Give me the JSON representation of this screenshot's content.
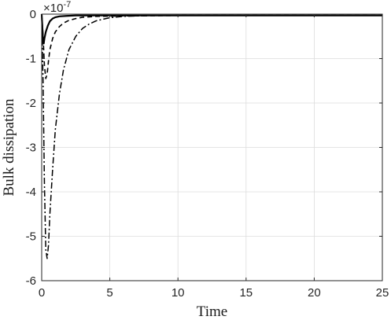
{
  "chart_data": {
    "type": "line",
    "title": "",
    "xlabel": "Time",
    "ylabel": "Bulk dissipation",
    "xlim": [
      0,
      25
    ],
    "ylim": [
      -6,
      0
    ],
    "y_exponent_label": "×10",
    "y_exponent": "-7",
    "xticks": [
      0,
      5,
      10,
      15,
      20,
      25
    ],
    "yticks": [
      0,
      -1,
      -2,
      -3,
      -4,
      -5,
      -6
    ],
    "grid": true,
    "legend": "none",
    "series": [
      {
        "style": "solid",
        "x": [
          0,
          0.05,
          0.1,
          0.15,
          0.2,
          0.3,
          0.45,
          0.6,
          0.8,
          1.0,
          1.3,
          1.8,
          2.5,
          5,
          10,
          25
        ],
        "y": [
          0,
          -0.3,
          -0.6,
          -0.66,
          -0.55,
          -0.4,
          -0.26,
          -0.16,
          -0.1,
          -0.07,
          -0.05,
          -0.04,
          -0.03,
          -0.03,
          -0.03,
          -0.03
        ]
      },
      {
        "style": "dashed",
        "x": [
          0,
          0.1,
          0.2,
          0.3,
          0.4,
          0.5,
          0.6,
          0.8,
          1.0,
          1.3,
          1.6,
          2.0,
          2.5,
          3,
          4,
          6,
          10,
          25
        ],
        "y": [
          0,
          -0.5,
          -1.15,
          -1.45,
          -1.35,
          -1.05,
          -0.8,
          -0.55,
          -0.4,
          -0.28,
          -0.2,
          -0.14,
          -0.1,
          -0.07,
          -0.05,
          -0.04,
          -0.03,
          -0.03
        ]
      },
      {
        "style": "dashdot",
        "x": [
          0,
          0.1,
          0.2,
          0.3,
          0.4,
          0.5,
          0.6,
          0.8,
          1.0,
          1.3,
          1.6,
          2.0,
          2.5,
          3,
          3.5,
          4,
          5,
          6,
          8,
          10,
          25
        ],
        "y": [
          0,
          -1.5,
          -3.8,
          -5.3,
          -5.5,
          -5.2,
          -4.5,
          -3.5,
          -2.6,
          -1.8,
          -1.25,
          -0.8,
          -0.5,
          -0.32,
          -0.22,
          -0.15,
          -0.08,
          -0.05,
          -0.03,
          -0.03,
          -0.03
        ]
      }
    ]
  }
}
